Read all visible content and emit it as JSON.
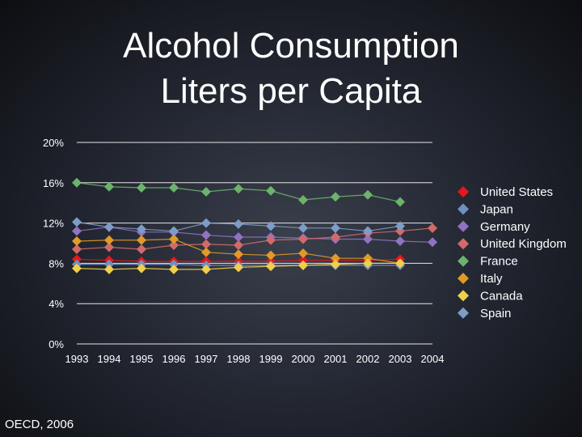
{
  "title_line1": "Alcohol Consumption",
  "title_line2": "Liters per Capita",
  "source": "OECD, 2006",
  "chart_data": {
    "type": "line",
    "title": "Alcohol Consumption Liters per Capita",
    "xlabel": "",
    "ylabel": "",
    "categories": [
      "1993",
      "1994",
      "1995",
      "1996",
      "1997",
      "1998",
      "1999",
      "2000",
      "2001",
      "2002",
      "2003",
      "2004"
    ],
    "yticks": [
      "0%",
      "4%",
      "8%",
      "12%",
      "16%",
      "20%"
    ],
    "ytick_values": [
      0,
      4,
      8,
      12,
      16,
      20
    ],
    "ylim": [
      0,
      20
    ],
    "grid": "horizontal",
    "legend_position": "right",
    "marker": "diamond",
    "series": [
      {
        "name": "United States",
        "color": "#e8151b",
        "values": [
          8.4,
          8.3,
          8.2,
          8.2,
          8.2,
          8.2,
          8.2,
          8.3,
          8.3,
          8.3,
          8.4,
          null
        ]
      },
      {
        "name": "Japan",
        "color": "#6f8fc2",
        "values": [
          7.9,
          7.9,
          7.9,
          7.9,
          7.8,
          7.8,
          7.8,
          7.8,
          7.8,
          7.8,
          7.8,
          null
        ]
      },
      {
        "name": "Germany",
        "color": "#8f72c2",
        "values": [
          11.2,
          11.6,
          11.1,
          11.1,
          10.8,
          10.6,
          10.6,
          10.5,
          10.4,
          10.4,
          10.2,
          10.1
        ]
      },
      {
        "name": "United Kingdom",
        "color": "#d36a6a",
        "values": [
          9.4,
          9.6,
          9.4,
          9.8,
          9.9,
          9.8,
          10.3,
          10.4,
          10.6,
          11.0,
          11.2,
          11.5
        ]
      },
      {
        "name": "France",
        "color": "#6cb36c",
        "values": [
          16.0,
          15.6,
          15.5,
          15.5,
          15.1,
          15.4,
          15.2,
          14.3,
          14.6,
          14.8,
          14.1,
          null
        ]
      },
      {
        "name": "Italy",
        "color": "#e09a28",
        "values": [
          10.2,
          10.3,
          10.3,
          10.4,
          9.1,
          8.9,
          8.8,
          9.0,
          8.5,
          8.5,
          8.0,
          null
        ]
      },
      {
        "name": "Canada",
        "color": "#f0cf4a",
        "values": [
          7.5,
          7.4,
          7.5,
          7.4,
          7.4,
          7.6,
          7.7,
          7.8,
          7.9,
          8.0,
          8.0,
          null
        ]
      },
      {
        "name": "Spain",
        "color": "#7e9cc8",
        "values": [
          12.1,
          11.6,
          11.4,
          11.2,
          12.0,
          11.9,
          11.7,
          11.5,
          11.5,
          11.2,
          11.7,
          null
        ]
      }
    ]
  }
}
